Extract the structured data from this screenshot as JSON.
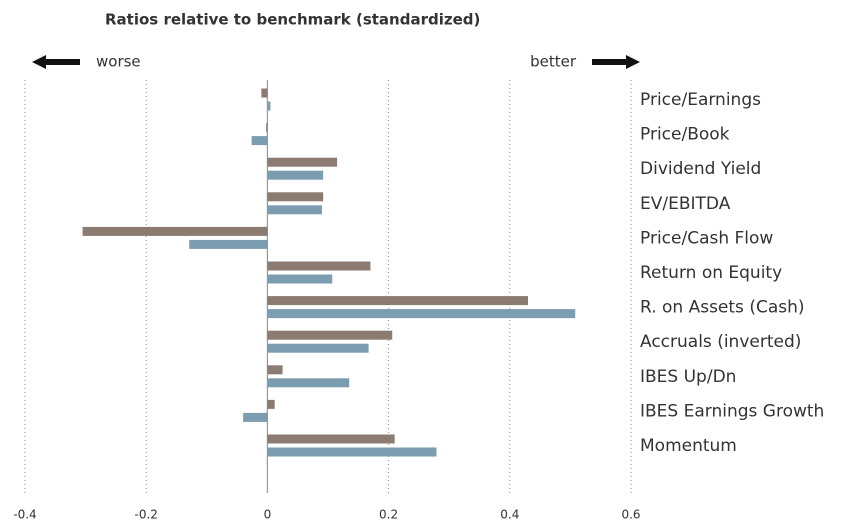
{
  "chart_data": {
    "type": "hbar",
    "title": "Ratios relative to benchmark (standardized)",
    "annotations": [
      "worse",
      "better"
    ],
    "categories": [
      "Price/Earnings",
      "Price/Book",
      "Dividend Yield",
      "EV/EBITDA",
      "Price/Cash Flow",
      "Return on Equity",
      "R. on Assets (Cash)",
      "Accruals (inverted)",
      "IBES Up/Dn",
      "IBES Earnings Growth",
      "Momentum"
    ],
    "series": [
      {
        "color": "#8b7b70",
        "values": [
          -0.01,
          -0.002,
          0.115,
          0.092,
          -0.305,
          0.17,
          0.43,
          0.206,
          0.025,
          0.012,
          0.21
        ]
      },
      {
        "color": "#7c9db0",
        "values": [
          0.005,
          -0.026,
          0.092,
          0.09,
          -0.129,
          0.107,
          0.508,
          0.167,
          0.135,
          -0.04,
          0.279
        ]
      }
    ],
    "xlim": [
      -0.4,
      0.6
    ],
    "xticks": [
      -0.4,
      -0.2,
      0,
      0.2,
      0.4,
      0.6
    ],
    "grid": true
  }
}
